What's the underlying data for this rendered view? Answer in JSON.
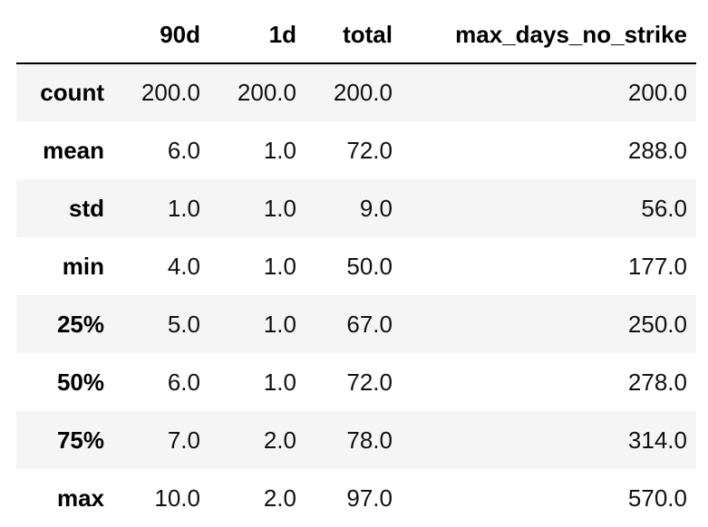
{
  "table": {
    "columns": [
      "",
      "90d",
      "1d",
      "total",
      "max_days_no_strike"
    ],
    "rows": [
      {
        "index": "count",
        "values": [
          "200.0",
          "200.0",
          "200.0",
          "200.0"
        ]
      },
      {
        "index": "mean",
        "values": [
          "6.0",
          "1.0",
          "72.0",
          "288.0"
        ]
      },
      {
        "index": "std",
        "values": [
          "1.0",
          "1.0",
          "9.0",
          "56.0"
        ]
      },
      {
        "index": "min",
        "values": [
          "4.0",
          "1.0",
          "50.0",
          "177.0"
        ]
      },
      {
        "index": "25%",
        "values": [
          "5.0",
          "1.0",
          "67.0",
          "250.0"
        ]
      },
      {
        "index": "50%",
        "values": [
          "6.0",
          "1.0",
          "72.0",
          "278.0"
        ]
      },
      {
        "index": "75%",
        "values": [
          "7.0",
          "2.0",
          "78.0",
          "314.0"
        ]
      },
      {
        "index": "max",
        "values": [
          "10.0",
          "2.0",
          "97.0",
          "570.0"
        ]
      }
    ]
  },
  "colors": {
    "striped_row": "#f5f5f5",
    "header_rule": "#000000",
    "background": "#ffffff"
  }
}
